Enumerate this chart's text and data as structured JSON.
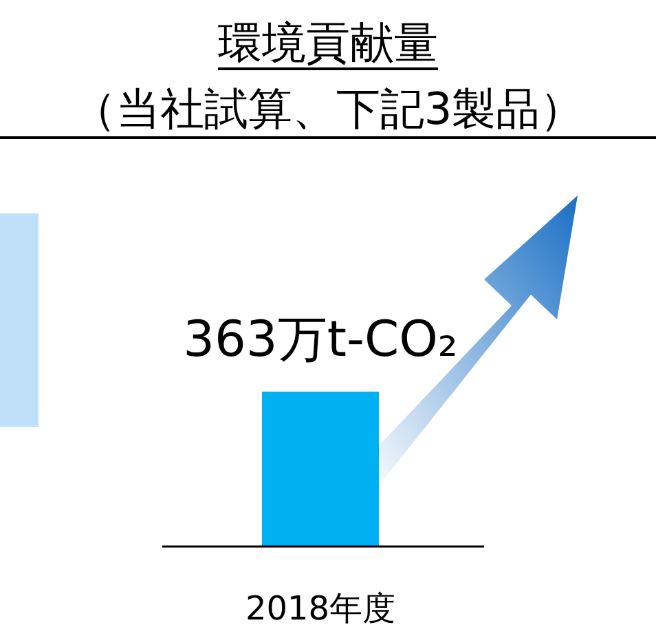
{
  "chart_data": {
    "type": "bar",
    "title": "環境貢献量",
    "subtitle": "（当社試算、下記3製品）",
    "categories": [
      "2018年度"
    ],
    "values": [
      363
    ],
    "color": "#00b0f0",
    "value_labels": [
      "363万t-CO₂"
    ]
  }
}
